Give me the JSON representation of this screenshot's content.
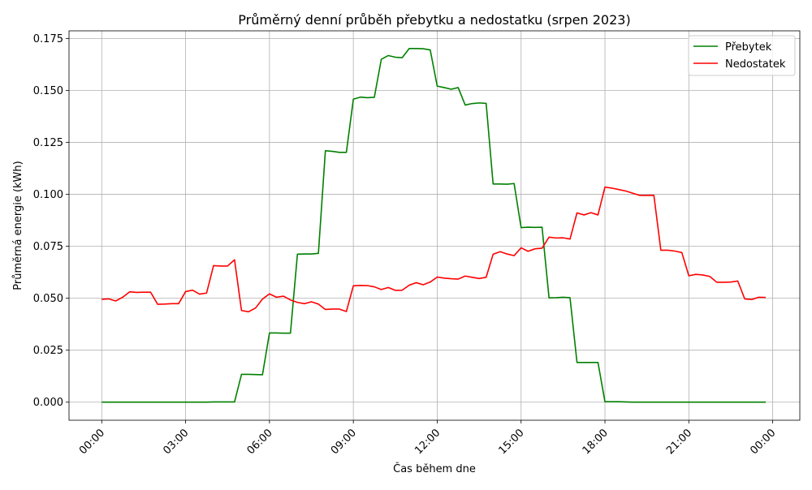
{
  "chart_data": {
    "type": "line",
    "title": "Průměrný denní průběh přebytku a nedostatku (srpen 2023)",
    "xlabel": "Čas během dne",
    "ylabel": "Průměrná energie (kWh)",
    "x_start": "00:00",
    "x_step_minutes": 15,
    "xlim_hours": [
      -1.17,
      24.97
    ],
    "ylim": [
      -0.0087,
      0.1787
    ],
    "x_ticks": [
      "00:00",
      "03:00",
      "06:00",
      "09:00",
      "12:00",
      "15:00",
      "18:00",
      "21:00",
      "00:00"
    ],
    "y_ticks": [
      "0.000",
      "0.025",
      "0.050",
      "0.075",
      "0.100",
      "0.125",
      "0.150",
      "0.175"
    ],
    "y_tick_values": [
      0,
      0.025,
      0.05,
      0.075,
      0.1,
      0.125,
      0.15,
      0.175
    ],
    "grid": true,
    "legend_position": "top-right",
    "series": [
      {
        "name": "Přebytek",
        "color": "#008000",
        "values": [
          0,
          0,
          0,
          0,
          0,
          0,
          0,
          0,
          0,
          0,
          0,
          0,
          0,
          0,
          0,
          0,
          0.0001,
          0.0001,
          0.0001,
          0.0001,
          0.0134,
          0.0134,
          0.0133,
          0.0132,
          0.0333,
          0.0333,
          0.0332,
          0.0332,
          0.0712,
          0.0713,
          0.0713,
          0.0716,
          0.121,
          0.1207,
          0.1202,
          0.1202,
          0.1458,
          0.1468,
          0.1465,
          0.1467,
          0.165,
          0.1668,
          0.166,
          0.1658,
          0.1702,
          0.1702,
          0.1701,
          0.1695,
          0.1521,
          0.1514,
          0.1506,
          0.1514,
          0.143,
          0.1437,
          0.144,
          0.1438,
          0.105,
          0.105,
          0.1049,
          0.1052,
          0.084,
          0.0842,
          0.0841,
          0.0842,
          0.0502,
          0.0503,
          0.0505,
          0.0503,
          0.0191,
          0.0191,
          0.0191,
          0.0191,
          0.0002,
          0.0002,
          0.0002,
          0.0001,
          0,
          0,
          0,
          0,
          0,
          0,
          0,
          0,
          0,
          0,
          0,
          0,
          0,
          0,
          0,
          0,
          0,
          0,
          0,
          0
        ]
      },
      {
        "name": "Nedostatek",
        "color": "#ff0000",
        "values": [
          0.0495,
          0.0497,
          0.0487,
          0.0505,
          0.0531,
          0.0528,
          0.0529,
          0.0529,
          0.0471,
          0.0472,
          0.0474,
          0.0474,
          0.0532,
          0.0539,
          0.052,
          0.0525,
          0.0657,
          0.0655,
          0.0655,
          0.0685,
          0.0441,
          0.0435,
          0.0453,
          0.0496,
          0.0521,
          0.0505,
          0.051,
          0.0492,
          0.048,
          0.0474,
          0.0483,
          0.0472,
          0.0446,
          0.0448,
          0.0448,
          0.0436,
          0.056,
          0.0562,
          0.0561,
          0.0555,
          0.0542,
          0.0552,
          0.0538,
          0.0539,
          0.0563,
          0.0575,
          0.0565,
          0.0578,
          0.0602,
          0.0597,
          0.0594,
          0.0592,
          0.0607,
          0.0601,
          0.0595,
          0.0601,
          0.0712,
          0.0724,
          0.0713,
          0.0705,
          0.0743,
          0.0726,
          0.0738,
          0.0741,
          0.0794,
          0.079,
          0.0791,
          0.0785,
          0.0911,
          0.0901,
          0.0912,
          0.0901,
          0.1035,
          0.103,
          0.1023,
          0.1016,
          0.1005,
          0.0995,
          0.0995,
          0.0995,
          0.0731,
          0.0731,
          0.0727,
          0.072,
          0.0608,
          0.0615,
          0.0612,
          0.0605,
          0.0577,
          0.0577,
          0.0578,
          0.0583,
          0.0497,
          0.0494,
          0.0505,
          0.0504
        ]
      }
    ]
  }
}
